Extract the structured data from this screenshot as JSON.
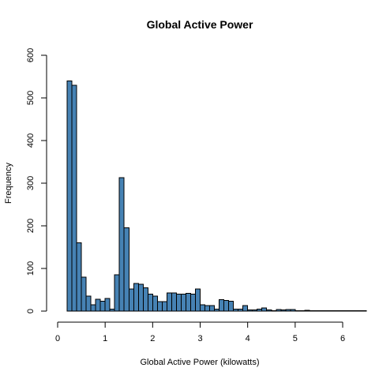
{
  "chart_data": {
    "type": "bar",
    "title": "Global Active Power",
    "xlabel": "Global Active Power (kilowatts)",
    "ylabel": "Frequency",
    "bin_width": 0.1,
    "bin_start": 0.2,
    "values": [
      540,
      530,
      160,
      80,
      35,
      15,
      28,
      23,
      30,
      5,
      85,
      313,
      195,
      52,
      65,
      63,
      55,
      40,
      35,
      22,
      22,
      43,
      43,
      40,
      40,
      42,
      40,
      52,
      15,
      13,
      13,
      5,
      27,
      25,
      23,
      5,
      5,
      13,
      3,
      3,
      5,
      7,
      3,
      1,
      4,
      3,
      4,
      4,
      1,
      1,
      2,
      1,
      1,
      1,
      1,
      1,
      1,
      1,
      1,
      1,
      1,
      1,
      1
    ],
    "xlim": [
      0,
      6
    ],
    "ylim": [
      0,
      600
    ],
    "x_ticks": [
      "0",
      "1",
      "2",
      "3",
      "4",
      "5",
      "6"
    ],
    "y_ticks": [
      "0",
      "100",
      "200",
      "300",
      "400",
      "500",
      "600"
    ],
    "bar_color": "#4682b4",
    "grid": false
  }
}
